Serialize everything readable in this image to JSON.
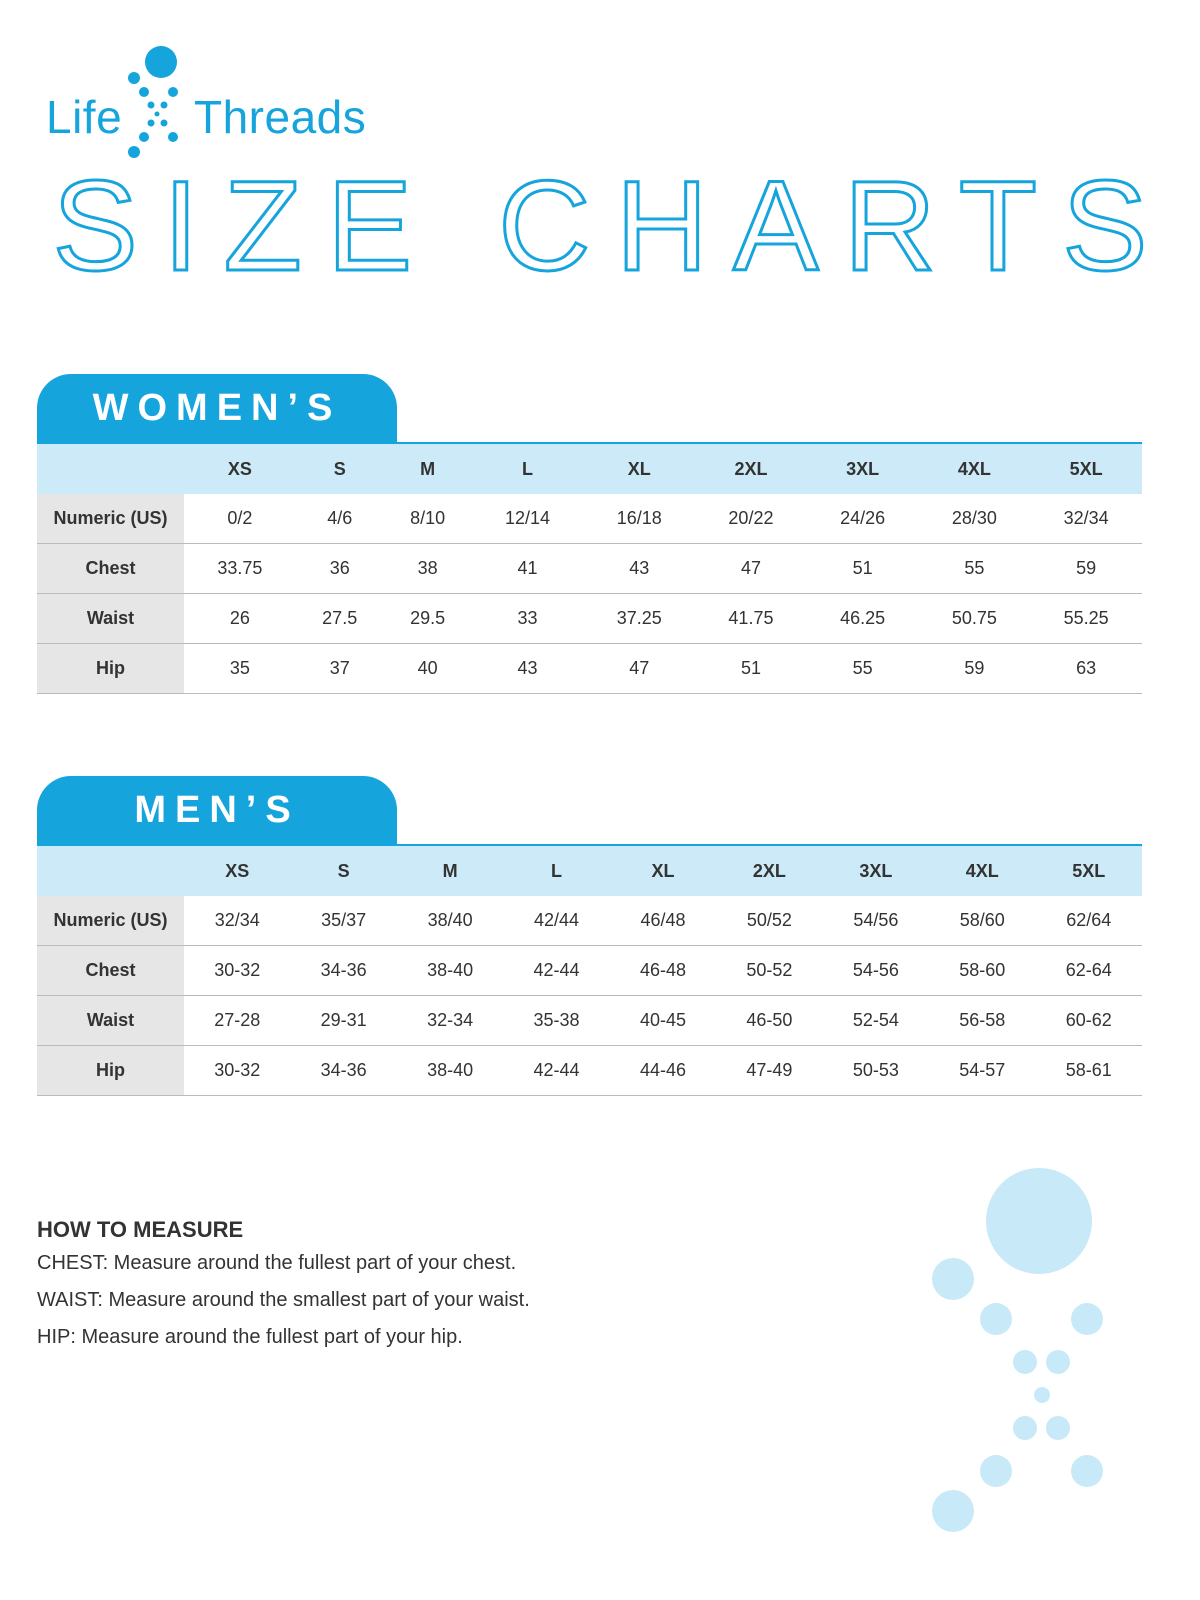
{
  "brand": {
    "name_left": "Life",
    "name_right": "Threads",
    "color": "#16a4dd"
  },
  "title": "SIZE CHARTS",
  "sizes": [
    "XS",
    "S",
    "M",
    "L",
    "XL",
    "2XL",
    "3XL",
    "4XL",
    "5XL"
  ],
  "womens": {
    "heading": "WOMEN’S",
    "rows": [
      {
        "label": "Numeric (US)",
        "values": [
          "0/2",
          "4/6",
          "8/10",
          "12/14",
          "16/18",
          "20/22",
          "24/26",
          "28/30",
          "32/34"
        ]
      },
      {
        "label": "Chest",
        "values": [
          "33.75",
          "36",
          "38",
          "41",
          "43",
          "47",
          "51",
          "55",
          "59"
        ]
      },
      {
        "label": "Waist",
        "values": [
          "26",
          "27.5",
          "29.5",
          "33",
          "37.25",
          "41.75",
          "46.25",
          "50.75",
          "55.25"
        ]
      },
      {
        "label": "Hip",
        "values": [
          "35",
          "37",
          "40",
          "43",
          "47",
          "51",
          "55",
          "59",
          "63"
        ]
      }
    ]
  },
  "mens": {
    "heading": "MEN’S",
    "rows": [
      {
        "label": "Numeric (US)",
        "values": [
          "32/34",
          "35/37",
          "38/40",
          "42/44",
          "46/48",
          "50/52",
          "54/56",
          "58/60",
          "62/64"
        ]
      },
      {
        "label": "Chest",
        "values": [
          "30-32",
          "34-36",
          "38-40",
          "42-44",
          "46-48",
          "50-52",
          "54-56",
          "58-60",
          "62-64"
        ]
      },
      {
        "label": "Waist",
        "values": [
          "27-28",
          "29-31",
          "32-34",
          "35-38",
          "40-45",
          "46-50",
          "52-54",
          "56-58",
          "60-62"
        ]
      },
      {
        "label": "Hip",
        "values": [
          "30-32",
          "34-36",
          "38-40",
          "42-44",
          "44-46",
          "47-49",
          "50-53",
          "54-57",
          "58-61"
        ]
      }
    ]
  },
  "how_to_measure": {
    "heading": "HOW TO MEASURE",
    "lines": [
      "CHEST: Measure around the fullest part of your chest.",
      "WAIST: Measure around the smallest part of your waist.",
      "HIP: Measure around the fullest part of your hip."
    ]
  },
  "colors": {
    "accent": "#16a4dd",
    "header_bg": "#cdeaf8",
    "label_bg": "#e6e6e6",
    "bubbles": "#c8e9f8"
  }
}
